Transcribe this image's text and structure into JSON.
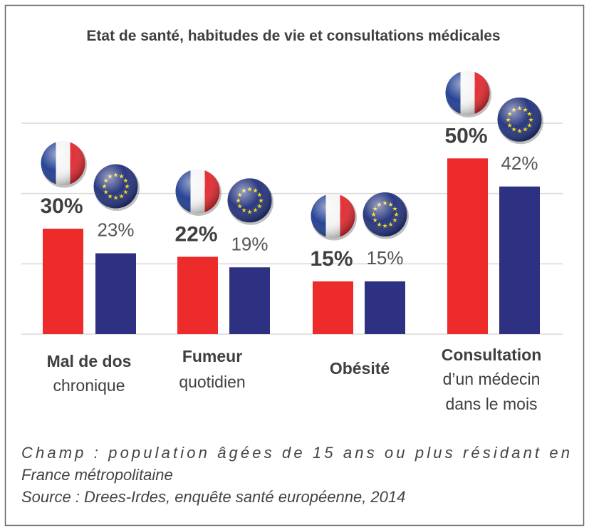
{
  "chart_data": {
    "type": "bar",
    "title": "Etat de santé, habitudes de vie et consultations médicales",
    "categories": [
      [
        "Mal de dos",
        "chronique"
      ],
      [
        "Fumeur",
        "quotidien"
      ],
      [
        "Obésité"
      ],
      [
        "Consultation",
        "d’un médecin",
        "dans le mois"
      ]
    ],
    "series": [
      {
        "flag": "france-flag-icon",
        "color": "#ee2b2b",
        "values": [
          30,
          22,
          15,
          50
        ],
        "labels": [
          "30%",
          "22%",
          "15%",
          "50%"
        ]
      },
      {
        "flag": "eu-flag-icon",
        "color": "#2e3182",
        "values": [
          23,
          19,
          15,
          42
        ],
        "labels": [
          "23%",
          "19%",
          "15%",
          "42%"
        ]
      }
    ],
    "ylim": [
      0,
      60
    ],
    "gridlines": [
      0,
      20,
      40,
      60
    ],
    "grid": true,
    "xlabel": "",
    "ylabel": ""
  },
  "footnote": [
    "Champ : population âgées de 15 ans ou plus résidant en",
    "France métropolitaine",
    "Source : Drees-Irdes, enquête santé européenne, 2014"
  ]
}
